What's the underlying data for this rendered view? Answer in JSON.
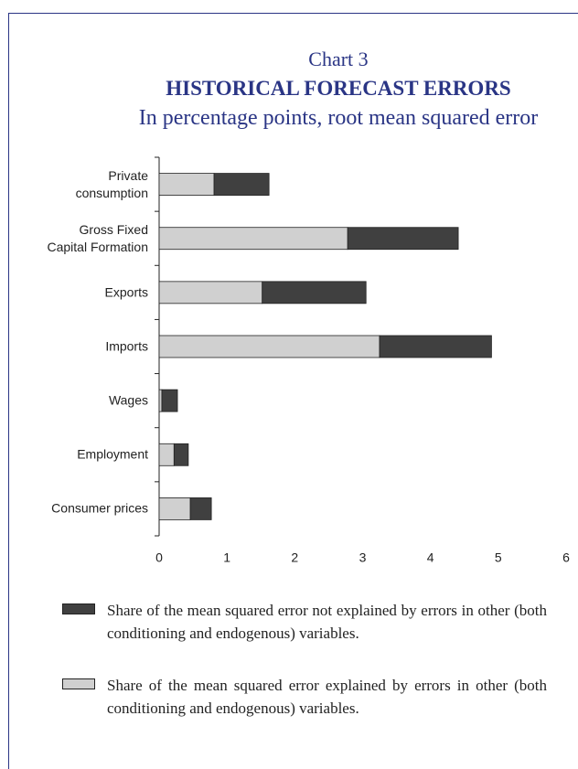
{
  "chart_data": {
    "type": "stacked-barh",
    "label": "Chart 3",
    "title": "HISTORICAL FORECAST ERRORS",
    "subtitle": "In percentage points, root mean squared error",
    "categories": [
      "Private consumption",
      "Gross Fixed Capital Formation",
      "Exports",
      "Imports",
      "Wages",
      "Employment",
      "Consumer prices"
    ],
    "series": [
      {
        "name": "Share of the mean squared error explained by errors in other (both conditioning and endogenous) variables.",
        "color": "#d0d0d0",
        "values": [
          0.81,
          2.78,
          1.52,
          3.25,
          0.04,
          0.22,
          0.46
        ]
      },
      {
        "name": "Share of the mean squared error not explained by errors in other (both conditioning and endogenous) variables.",
        "color": "#404040",
        "values": [
          0.81,
          1.63,
          1.53,
          1.65,
          0.23,
          0.21,
          0.31
        ]
      }
    ],
    "xlim": [
      0,
      6
    ],
    "xticks": [
      0,
      1,
      2,
      3,
      4,
      5,
      6
    ],
    "grid": false
  }
}
